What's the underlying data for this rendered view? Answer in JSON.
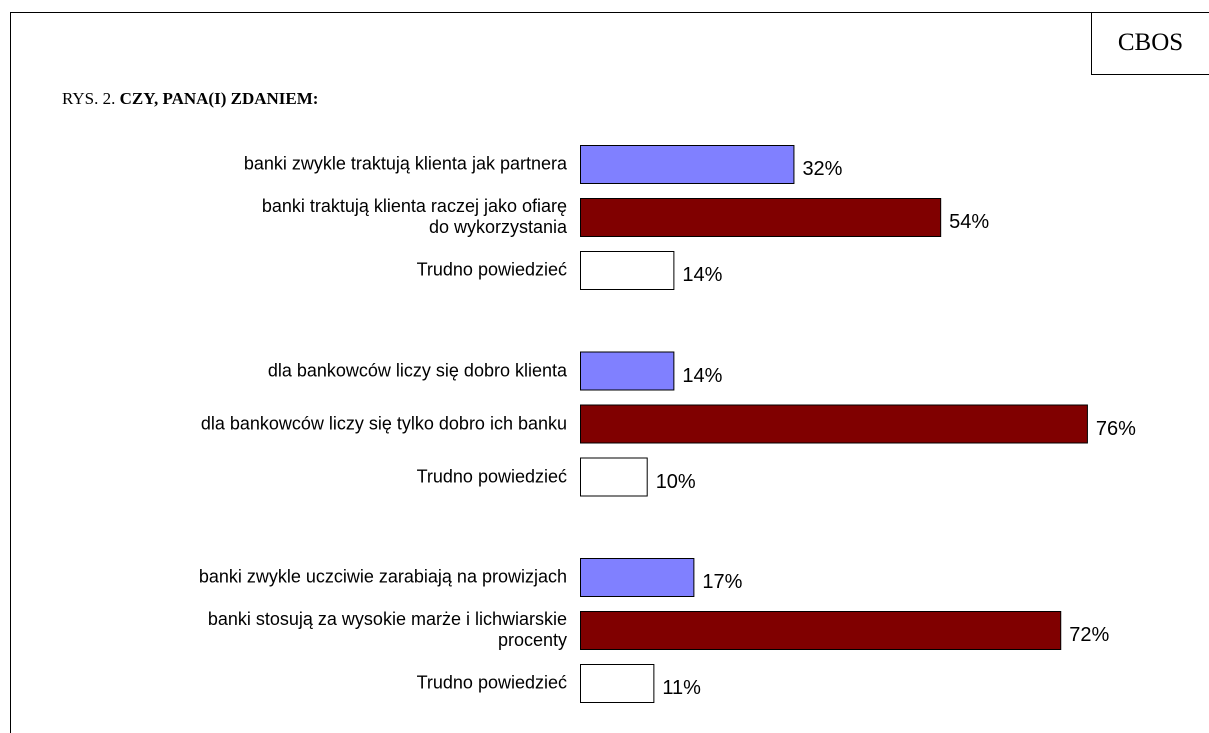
{
  "brand": "CBOS",
  "chart_data": {
    "type": "bar",
    "figure_label": "RYS. 2.",
    "title": "CZY, PANA(I) ZDANIEM:",
    "categories": [
      "banki zwykle traktują klienta jak partnera",
      "banki traktują klienta raczej jako ofiarę\ndo wykorzystania",
      "Trudno powiedzieć",
      "dla bankowców liczy się dobro klienta",
      "dla bankowców liczy się tylko dobro ich banku",
      "Trudno powiedzieć",
      "banki zwykle uczciwie zarabiają na prowizjach",
      "banki stosują za wysokie marże i lichwiarskie\nprocenty",
      "Trudno powiedzieć"
    ],
    "values": [
      32,
      54,
      14,
      14,
      76,
      10,
      17,
      72,
      11
    ],
    "value_labels": [
      "32%",
      "54%",
      "14%",
      "14%",
      "76%",
      "10%",
      "17%",
      "72%",
      "11%"
    ],
    "colors": [
      "#8080ff",
      "#800000",
      "#ffffff",
      "#8080ff",
      "#800000",
      "#ffffff",
      "#8080ff",
      "#800000",
      "#ffffff"
    ],
    "xlim": [
      0,
      100
    ]
  }
}
